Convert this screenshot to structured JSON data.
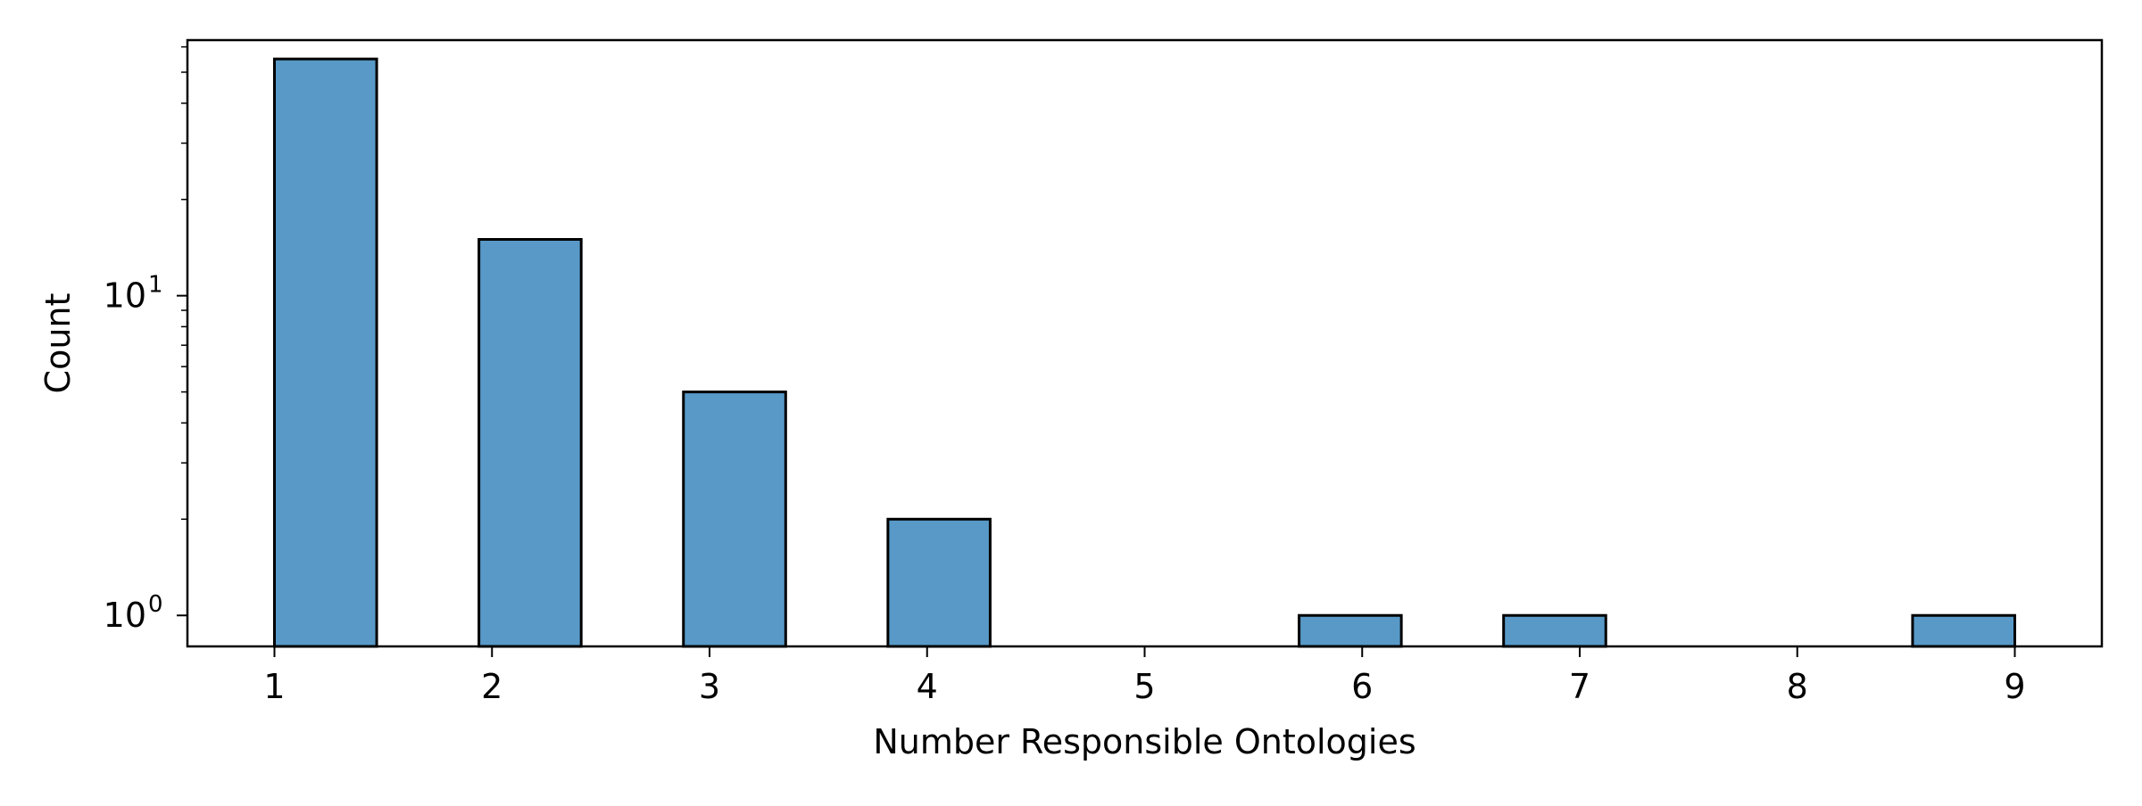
{
  "chart_data": {
    "type": "bar",
    "title": "",
    "xlabel": "Number Responsible Ontologies",
    "ylabel": "Count",
    "x_ticks": [
      "1",
      "2",
      "3",
      "4",
      "5",
      "6",
      "7",
      "8",
      "9"
    ],
    "y_scale": "log",
    "y_ticks": [
      {
        "value": 1,
        "base": "10",
        "exp": "0"
      },
      {
        "value": 10,
        "base": "10",
        "exp": "1"
      }
    ],
    "ylim": [
      0.8,
      63
    ],
    "xlim": [
      0.6,
      9.4
    ],
    "bins": [
      {
        "x_start": 1.0,
        "x_end": 1.47,
        "count": 55
      },
      {
        "x_start": 1.94,
        "x_end": 2.41,
        "count": 15
      },
      {
        "x_start": 2.88,
        "x_end": 3.35,
        "count": 5
      },
      {
        "x_start": 3.82,
        "x_end": 4.29,
        "count": 2
      },
      {
        "x_start": 4.76,
        "x_end": 5.23,
        "count": 0
      },
      {
        "x_start": 5.71,
        "x_end": 6.18,
        "count": 1
      },
      {
        "x_start": 6.65,
        "x_end": 7.12,
        "count": 1
      },
      {
        "x_start": 7.59,
        "x_end": 8.06,
        "count": 0
      },
      {
        "x_start": 8.53,
        "x_end": 9.0,
        "count": 1
      }
    ],
    "bar_color": "#5899c7",
    "edge_color": "#000000",
    "grid": false,
    "legend": "none"
  }
}
